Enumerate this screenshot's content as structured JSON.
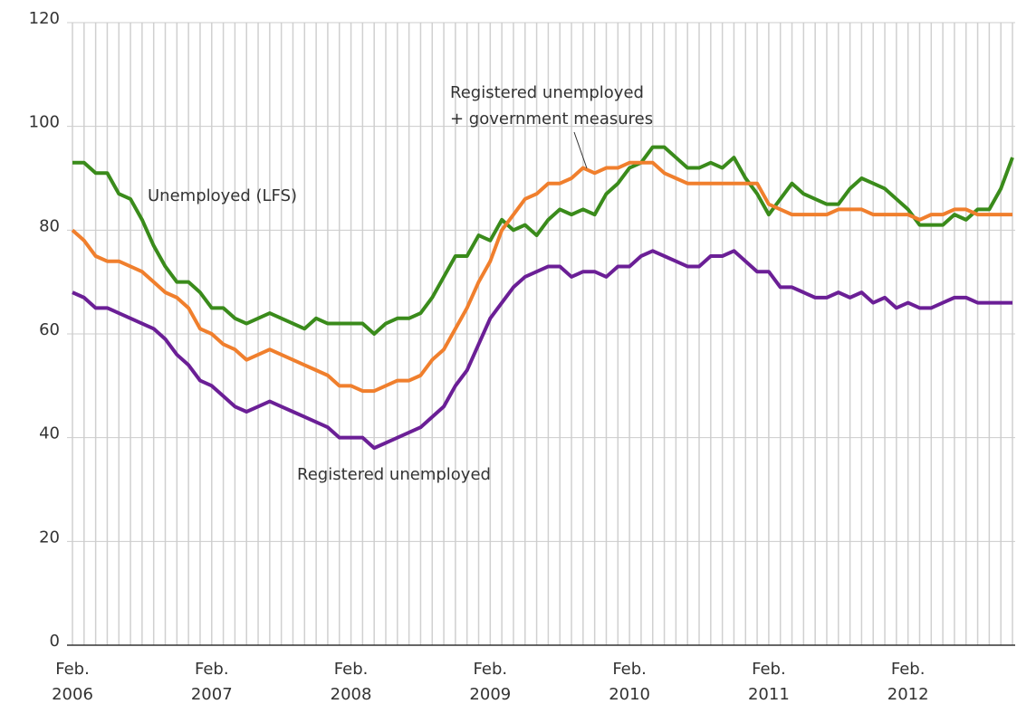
{
  "chart_data": {
    "type": "line",
    "categories": [
      "Feb. 2006",
      null,
      null,
      null,
      null,
      null,
      null,
      null,
      null,
      null,
      null,
      null,
      "Feb. 2007",
      null,
      null,
      null,
      null,
      null,
      null,
      null,
      null,
      null,
      null,
      null,
      "Feb. 2008",
      null,
      null,
      null,
      null,
      null,
      null,
      null,
      null,
      null,
      null,
      null,
      "Feb. 2009",
      null,
      null,
      null,
      null,
      null,
      null,
      null,
      null,
      null,
      null,
      null,
      "Feb. 2010",
      null,
      null,
      null,
      null,
      null,
      null,
      null,
      null,
      null,
      null,
      null,
      "Feb. 2011",
      null,
      null,
      null,
      null,
      null,
      null,
      null,
      null,
      null,
      null,
      null,
      "Feb. 2012",
      null,
      null,
      null,
      null,
      null,
      null,
      null,
      null,
      null
    ],
    "series": [
      {
        "name": "Unemployed (LFS)",
        "color": "#3a8b1b",
        "values": [
          93,
          93,
          91,
          91,
          87,
          86,
          82,
          77,
          73,
          70,
          70,
          68,
          65,
          65,
          63,
          62,
          63,
          64,
          63,
          62,
          61,
          63,
          62,
          62,
          62,
          62,
          60,
          62,
          63,
          63,
          64,
          67,
          71,
          75,
          75,
          79,
          78,
          82,
          80,
          81,
          79,
          82,
          84,
          83,
          84,
          83,
          87,
          89,
          92,
          93,
          96,
          96,
          94,
          92,
          92,
          93,
          92,
          94,
          90,
          87,
          83,
          86,
          89,
          87,
          86,
          85,
          85,
          88,
          90,
          89,
          88,
          86,
          84,
          81,
          81,
          81,
          83,
          82,
          84,
          84,
          88,
          94
        ]
      },
      {
        "name": "Registered unemployed + government measures",
        "color": "#f07f2d",
        "values": [
          80,
          78,
          75,
          74,
          74,
          73,
          72,
          70,
          68,
          67,
          65,
          61,
          60,
          58,
          57,
          55,
          56,
          57,
          56,
          55,
          54,
          53,
          52,
          50,
          50,
          49,
          49,
          50,
          51,
          51,
          52,
          55,
          57,
          61,
          65,
          70,
          74,
          80,
          83,
          86,
          87,
          89,
          89,
          90,
          92,
          91,
          92,
          92,
          93,
          93,
          93,
          91,
          90,
          89,
          89,
          89,
          89,
          89,
          89,
          89,
          85,
          84,
          83,
          83,
          83,
          83,
          84,
          84,
          84,
          83,
          83,
          83,
          83,
          82,
          83,
          83,
          84,
          84,
          83,
          83,
          83,
          83
        ]
      },
      {
        "name": "Registered unemployed",
        "color": "#6b1f96",
        "values": [
          68,
          67,
          65,
          65,
          64,
          63,
          62,
          61,
          59,
          56,
          54,
          51,
          50,
          48,
          46,
          45,
          46,
          47,
          46,
          45,
          44,
          43,
          42,
          40,
          40,
          40,
          38,
          39,
          40,
          41,
          42,
          44,
          46,
          50,
          53,
          58,
          63,
          66,
          69,
          71,
          72,
          73,
          73,
          71,
          72,
          72,
          71,
          73,
          73,
          75,
          76,
          75,
          74,
          73,
          73,
          75,
          75,
          76,
          74,
          72,
          72,
          69,
          69,
          68,
          67,
          67,
          68,
          67,
          68,
          66,
          67,
          65,
          66,
          65,
          65,
          66,
          67,
          67,
          66,
          66,
          66,
          66
        ]
      }
    ],
    "annotations": [
      {
        "lines": [
          "Unemployed (LFS)"
        ]
      },
      {
        "lines": [
          "Registered unemployed",
          "+ government measures"
        ]
      },
      {
        "lines": [
          "Registered unemployed"
        ]
      }
    ],
    "ylim": [
      0,
      120
    ],
    "yticks": [
      0,
      20,
      40,
      60,
      80,
      100,
      120
    ],
    "grid": true
  }
}
